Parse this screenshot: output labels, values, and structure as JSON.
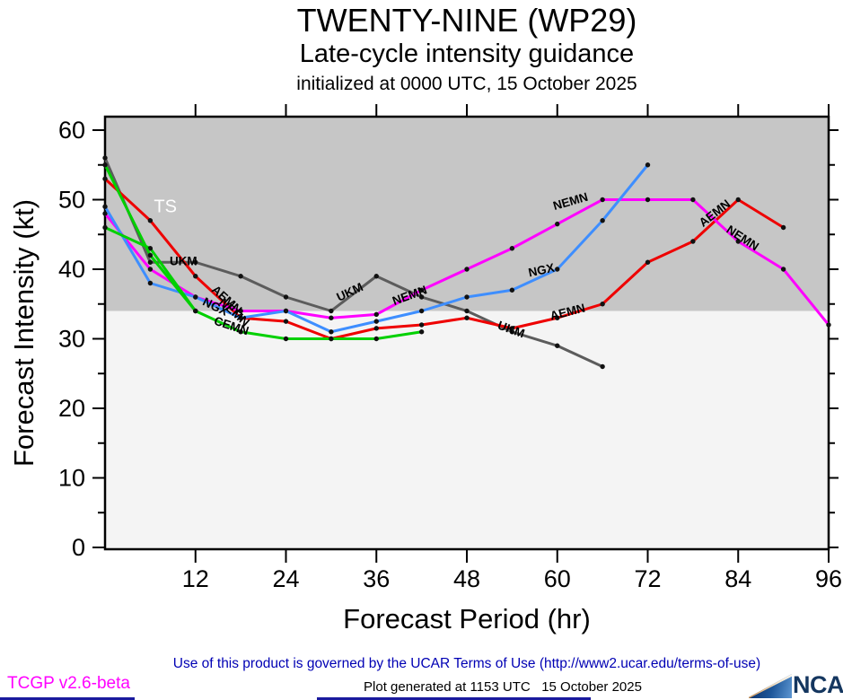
{
  "header": {
    "title": "TWENTY-NINE (WP29)",
    "subtitle": "Late-cycle intensity guidance",
    "initialized": "initialized at 0000 UTC, 15 October 2025"
  },
  "chart_data": {
    "type": "line",
    "title": "TWENTY-NINE (WP29)",
    "subtitle": "Late-cycle intensity guidance",
    "initialized": "initialized at 0000 UTC, 15 October 2025",
    "xlabel": "Forecast Period (hr)",
    "ylabel": "Forecast Intensity (kt)",
    "xlim": [
      0,
      96
    ],
    "ylim": [
      0,
      62
    ],
    "x_ticks": [
      12,
      24,
      36,
      48,
      60,
      72,
      84,
      96
    ],
    "y_ticks": [
      0,
      10,
      20,
      30,
      40,
      50,
      60
    ],
    "y_minor_ticks": [
      5,
      15,
      25,
      35,
      45,
      55
    ],
    "grid": "off",
    "legend": "inline line labels",
    "ts_band": {
      "threshold_kt": 34,
      "label": "TS",
      "band_color": "#c6c6c6",
      "below_color": "#f4f4f4"
    },
    "series": [
      {
        "name": "UKM",
        "color": "#5c5c5c",
        "x": [
          0,
          6,
          12,
          18,
          24,
          30,
          36,
          42,
          48,
          54,
          60,
          66
        ],
        "y": [
          56,
          41,
          41,
          39,
          36,
          34,
          39,
          36,
          34,
          31,
          29,
          26
        ]
      },
      {
        "name": "AEMN",
        "color": "#ee0000",
        "x": [
          0,
          6,
          12,
          18,
          24,
          30,
          36,
          42,
          48,
          54,
          60,
          66,
          72,
          78,
          84,
          90
        ],
        "y": [
          53,
          47,
          39,
          33,
          32.5,
          30,
          31.5,
          32,
          33,
          31.5,
          33,
          35,
          41,
          44,
          50,
          46
        ]
      },
      {
        "name": "NEMN",
        "color": "#ff00ff",
        "x": [
          0,
          6,
          12,
          18,
          24,
          30,
          36,
          42,
          48,
          54,
          60,
          66,
          72,
          78,
          84,
          90,
          96
        ],
        "y": [
          48,
          40,
          36,
          34,
          34,
          33,
          33.5,
          37,
          40,
          43,
          46.5,
          50,
          50,
          50,
          44,
          40,
          32
        ]
      },
      {
        "name": "NGX",
        "color": "#3e8eff",
        "x": [
          0,
          6,
          12,
          18,
          24,
          30,
          36,
          42,
          48,
          54,
          60,
          66,
          72
        ],
        "y": [
          49,
          38,
          36,
          33,
          34,
          31,
          32.5,
          34,
          36,
          37,
          40,
          47,
          55
        ]
      },
      {
        "name": "CEMN",
        "color": "#00d000",
        "x": [
          0,
          6,
          12,
          18,
          24,
          30,
          36,
          42
        ],
        "y": [
          46,
          43,
          34,
          31,
          30,
          30,
          30,
          31
        ]
      },
      {
        "name": "CEMN-early-green-segment",
        "color": "#00d000",
        "x": [
          0,
          6,
          12
        ],
        "y": [
          55,
          42,
          34
        ]
      }
    ],
    "line_labels": [
      {
        "text": "TS",
        "hr": 8.0,
        "kt": 48.2,
        "rot": 0,
        "color": "#ffffff",
        "size": 20,
        "weight": "normal"
      },
      {
        "text": "UKM",
        "hr": 10.4,
        "kt": 40.6,
        "rot": 0
      },
      {
        "text": "AEMN",
        "hr": 15.8,
        "kt": 35.2,
        "rot": 42
      },
      {
        "text": "NEMN",
        "hr": 16.8,
        "kt": 33.4,
        "rot": 42
      },
      {
        "text": "NGX",
        "hr": 14.4,
        "kt": 34.1,
        "rot": 26
      },
      {
        "text": "CEMN",
        "hr": 16.6,
        "kt": 31.3,
        "rot": 18
      },
      {
        "text": "UKM",
        "hr": 32.7,
        "kt": 36.2,
        "rot": -25
      },
      {
        "text": "NEMN",
        "hr": 40.6,
        "kt": 35.7,
        "rot": -20
      },
      {
        "text": "UKM",
        "hr": 53.7,
        "kt": 30.8,
        "rot": 20
      },
      {
        "text": "NGX",
        "hr": 58.0,
        "kt": 39.3,
        "rot": -12
      },
      {
        "text": "AEMN",
        "hr": 61.5,
        "kt": 33.3,
        "rot": -14
      },
      {
        "text": "NEMN",
        "hr": 61.9,
        "kt": 49.2,
        "rot": -16
      },
      {
        "text": "AEMN",
        "hr": 81.2,
        "kt": 47.6,
        "rot": -38
      },
      {
        "text": "NEMN",
        "hr": 84.3,
        "kt": 44.0,
        "rot": 33
      }
    ]
  },
  "footer": {
    "terms": "Use of this product is governed by the UCAR Terms of Use (http://www2.ucar.edu/terms-of-use)",
    "terms_color": "#0000b4",
    "version": "TCGP v2.6-beta",
    "version_color": "#ff00ff",
    "generated": "Plot generated at 1153 UTC   15 October 2025",
    "ncar_text": "NCAR"
  }
}
